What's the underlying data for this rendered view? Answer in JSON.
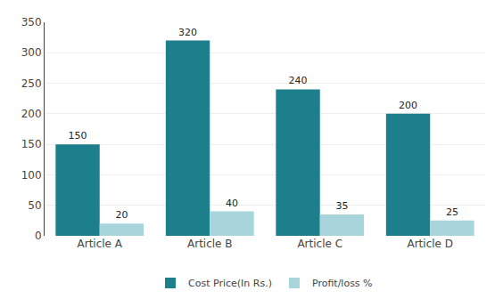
{
  "chart_data": {
    "type": "bar",
    "categories": [
      "Article A",
      "Article B",
      "Article C",
      "Article D"
    ],
    "series": [
      {
        "name": "Cost Price(In Rs.)",
        "color": "#1e7f8c",
        "values": [
          150,
          320,
          240,
          200
        ]
      },
      {
        "name": "Profit/loss %",
        "color": "#a8d5dc",
        "values": [
          20,
          40,
          35,
          25
        ]
      }
    ],
    "ylim": [
      0,
      350
    ],
    "yticks": [
      0,
      50,
      100,
      150,
      200,
      250,
      300,
      350
    ],
    "grid": true,
    "legend": "bottom",
    "data_labels": true
  }
}
